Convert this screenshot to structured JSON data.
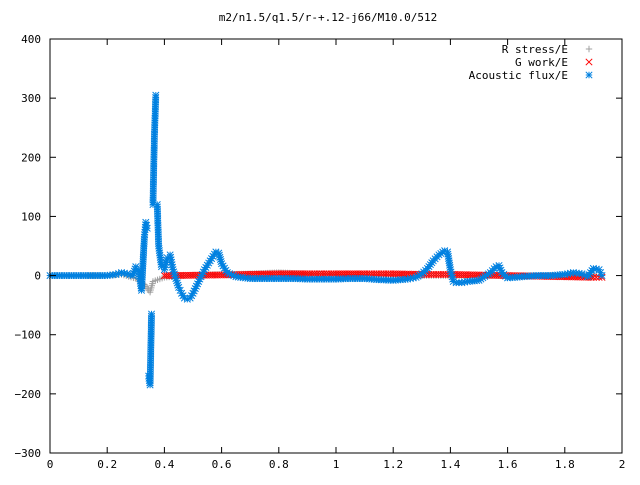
{
  "chart_data": {
    "type": "scatter",
    "title": "m2/n1.5/q1.5/r-+.12-j66/M10.0/512",
    "xlabel": "",
    "ylabel": "",
    "xlim": [
      0,
      2
    ],
    "ylim": [
      -300,
      400
    ],
    "xticks": [
      "0",
      "0.2",
      "0.4",
      "0.6",
      "0.8",
      "1",
      "1.2",
      "1.4",
      "1.6",
      "1.8",
      "2"
    ],
    "xtick_values": [
      0,
      0.2,
      0.4,
      0.6,
      0.8,
      1.0,
      1.2,
      1.4,
      1.6,
      1.8,
      2.0
    ],
    "yticks": [
      "400",
      "300",
      "200",
      "100",
      "0",
      "−100",
      "−200",
      "−300"
    ],
    "ytick_values": [
      400,
      300,
      200,
      100,
      0,
      -100,
      -200,
      -300
    ],
    "grid": false,
    "legend_position": "top-right",
    "series": [
      {
        "name": "R stress/E",
        "marker": "plus",
        "color": "#a0a0a0",
        "x": [
          0.0,
          0.1,
          0.2,
          0.25,
          0.3,
          0.33,
          0.35,
          0.36,
          0.4,
          0.45,
          0.5,
          0.6,
          0.7,
          0.8,
          0.9,
          1.0,
          1.1,
          1.2,
          1.3,
          1.4,
          1.5,
          1.6,
          1.7,
          1.8,
          1.9,
          1.93
        ],
        "values": [
          0,
          0,
          0,
          2,
          -5,
          -15,
          -28,
          -10,
          -3,
          -1,
          1,
          2,
          3,
          5,
          3,
          2,
          1,
          1,
          0,
          0,
          0,
          0,
          0,
          0,
          0,
          0
        ]
      },
      {
        "name": "G work/E",
        "marker": "cross",
        "color": "#ff0000",
        "x": [
          0.4,
          0.5,
          0.6,
          0.7,
          0.8,
          0.9,
          1.0,
          1.1,
          1.2,
          1.3,
          1.4,
          1.5,
          1.6,
          1.7,
          1.8,
          1.9,
          1.93
        ],
        "values": [
          0,
          0.5,
          1,
          2,
          3,
          3,
          3,
          3,
          3,
          2,
          2,
          1,
          0,
          -1,
          -2,
          -3,
          -3
        ]
      },
      {
        "name": "Acoustic flux/E",
        "marker": "asterisk",
        "color": "#0080e0",
        "x": [
          0.0,
          0.05,
          0.1,
          0.15,
          0.2,
          0.23,
          0.25,
          0.27,
          0.29,
          0.3,
          0.31,
          0.32,
          0.33,
          0.335,
          0.34,
          0.345,
          0.35,
          0.355,
          0.36,
          0.365,
          0.37,
          0.375,
          0.38,
          0.39,
          0.4,
          0.41,
          0.42,
          0.43,
          0.44,
          0.45,
          0.46,
          0.47,
          0.48,
          0.49,
          0.5,
          0.52,
          0.54,
          0.56,
          0.58,
          0.59,
          0.6,
          0.62,
          0.65,
          0.7,
          0.75,
          0.8,
          0.85,
          0.9,
          0.95,
          1.0,
          1.05,
          1.1,
          1.15,
          1.2,
          1.25,
          1.28,
          1.3,
          1.32,
          1.34,
          1.36,
          1.38,
          1.39,
          1.4,
          1.41,
          1.42,
          1.44,
          1.46,
          1.5,
          1.54,
          1.56,
          1.57,
          1.58,
          1.6,
          1.65,
          1.7,
          1.75,
          1.8,
          1.83,
          1.86,
          1.88,
          1.9,
          1.92,
          1.93
        ],
        "values": [
          0,
          0,
          0,
          0,
          0,
          2,
          5,
          3,
          0,
          15,
          10,
          -25,
          65,
          90,
          80,
          -170,
          -185,
          -65,
          120,
          235,
          305,
          120,
          50,
          15,
          10,
          30,
          35,
          10,
          -5,
          -20,
          -30,
          -38,
          -40,
          -38,
          -30,
          -10,
          10,
          25,
          40,
          38,
          20,
          5,
          -2,
          -5,
          -5,
          -5,
          -5,
          -6,
          -6,
          -6,
          -5,
          -5,
          -7,
          -8,
          -6,
          -3,
          3,
          12,
          25,
          35,
          42,
          40,
          10,
          -10,
          -12,
          -12,
          -10,
          -8,
          5,
          15,
          17,
          5,
          -4,
          -2,
          0,
          0,
          2,
          5,
          3,
          -2,
          12,
          10,
          0
        ]
      }
    ]
  }
}
